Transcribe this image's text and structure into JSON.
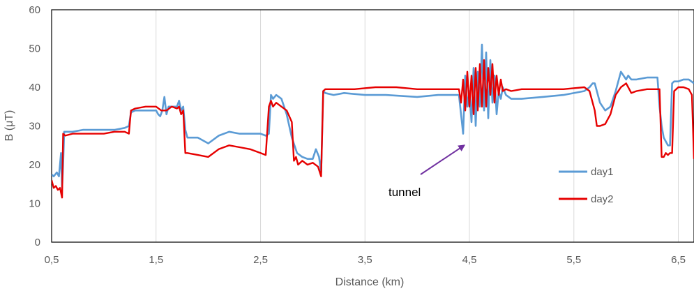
{
  "chart_data": {
    "type": "line",
    "title": "",
    "xlabel": "Distance (km)",
    "ylabel": "B (μT)",
    "xlim": [
      0.5,
      6.65
    ],
    "ylim": [
      0,
      60
    ],
    "x_ticks": [
      0.5,
      1.5,
      2.5,
      3.5,
      4.5,
      5.5,
      6.5
    ],
    "x_tick_labels": [
      "0,5",
      "1,5",
      "2,5",
      "3,5",
      "4,5",
      "5,5",
      "6,5"
    ],
    "y_ticks": [
      0,
      10,
      20,
      30,
      40,
      50,
      60
    ],
    "y_tick_labels": [
      "0",
      "10",
      "20",
      "30",
      "40",
      "50",
      "60"
    ],
    "grid": "vertical",
    "legend_position": "right",
    "annotations": [
      {
        "text": "tunnel",
        "arrow_to": [
          4.45,
          25
        ]
      }
    ],
    "series": [
      {
        "name": "day1",
        "color": "#5b9bd5",
        "x": [
          0.5,
          0.52,
          0.55,
          0.57,
          0.59,
          0.6,
          0.61,
          0.62,
          0.65,
          0.7,
          0.8,
          1.0,
          1.1,
          1.2,
          1.24,
          1.26,
          1.3,
          1.4,
          1.5,
          1.52,
          1.54,
          1.56,
          1.58,
          1.6,
          1.62,
          1.65,
          1.7,
          1.72,
          1.74,
          1.76,
          1.78,
          1.8,
          1.9,
          2.0,
          2.1,
          2.2,
          2.3,
          2.4,
          2.5,
          2.55,
          2.58,
          2.6,
          2.62,
          2.65,
          2.7,
          2.75,
          2.8,
          2.85,
          2.9,
          2.95,
          3.0,
          3.03,
          3.06,
          3.08,
          3.1,
          3.12,
          3.2,
          3.3,
          3.5,
          3.7,
          4.0,
          4.2,
          4.4,
          4.44,
          4.46,
          4.48,
          4.5,
          4.52,
          4.54,
          4.56,
          4.58,
          4.6,
          4.62,
          4.64,
          4.66,
          4.68,
          4.7,
          4.72,
          4.74,
          4.76,
          4.78,
          4.8,
          4.82,
          4.85,
          4.9,
          5.0,
          5.2,
          5.4,
          5.6,
          5.65,
          5.68,
          5.7,
          5.75,
          5.8,
          5.85,
          5.9,
          5.95,
          6.0,
          6.02,
          6.05,
          6.1,
          6.2,
          6.3,
          6.32,
          6.34,
          6.36,
          6.38,
          6.4,
          6.42,
          6.44,
          6.46,
          6.5,
          6.55,
          6.6,
          6.65
        ],
        "y": [
          17.5,
          17,
          18,
          17,
          23,
          14,
          20,
          28.5,
          28.5,
          28.5,
          29,
          29,
          29,
          29.5,
          30,
          33.5,
          34,
          34,
          34,
          33,
          32.5,
          34,
          37.5,
          33,
          35,
          35,
          35,
          36.5,
          34,
          35,
          29,
          27,
          27,
          25.5,
          27.5,
          28.5,
          28,
          28,
          28,
          27.5,
          28,
          38,
          37,
          38,
          37,
          33,
          27,
          23,
          22,
          21.5,
          21.5,
          24,
          22,
          18,
          39,
          38.5,
          38,
          38.5,
          38,
          38,
          37.5,
          38,
          38,
          28,
          43,
          35,
          39,
          31,
          45,
          30,
          44,
          35,
          51,
          34,
          49,
          32,
          47,
          36,
          43,
          33,
          39,
          37,
          40,
          38,
          37,
          37,
          37.5,
          38,
          39,
          40,
          41,
          41,
          36,
          34,
          35,
          39,
          44,
          42,
          43,
          42,
          42,
          42.5,
          42.5,
          35,
          30,
          27,
          26,
          25,
          25,
          41,
          41.5,
          41.5,
          42,
          42,
          41
        ]
      },
      {
        "name": "day2",
        "color": "#e60000",
        "x": [
          0.5,
          0.52,
          0.54,
          0.56,
          0.58,
          0.6,
          0.61,
          0.63,
          0.7,
          0.8,
          1.0,
          1.1,
          1.2,
          1.24,
          1.26,
          1.3,
          1.4,
          1.5,
          1.55,
          1.6,
          1.65,
          1.7,
          1.72,
          1.74,
          1.76,
          1.78,
          1.8,
          1.9,
          2.0,
          2.1,
          2.2,
          2.3,
          2.4,
          2.5,
          2.55,
          2.58,
          2.6,
          2.62,
          2.65,
          2.7,
          2.75,
          2.8,
          2.82,
          2.84,
          2.86,
          2.9,
          2.95,
          3.0,
          3.05,
          3.08,
          3.1,
          3.12,
          3.2,
          3.4,
          3.6,
          3.8,
          4.0,
          4.2,
          4.4,
          4.42,
          4.44,
          4.46,
          4.48,
          4.5,
          4.52,
          4.54,
          4.56,
          4.58,
          4.6,
          4.62,
          4.64,
          4.66,
          4.68,
          4.7,
          4.72,
          4.74,
          4.76,
          4.78,
          4.8,
          4.82,
          4.85,
          4.9,
          5.0,
          5.2,
          5.4,
          5.6,
          5.65,
          5.7,
          5.72,
          5.75,
          5.8,
          5.85,
          5.9,
          5.95,
          6.0,
          6.02,
          6.05,
          6.1,
          6.2,
          6.3,
          6.32,
          6.34,
          6.36,
          6.38,
          6.4,
          6.42,
          6.44,
          6.46,
          6.48,
          6.5,
          6.55,
          6.6,
          6.63,
          6.65
        ],
        "y": [
          16,
          14,
          14.5,
          13.5,
          14,
          11.5,
          28,
          27.5,
          28,
          28,
          28,
          28.5,
          28.5,
          28,
          34,
          34.5,
          35,
          35,
          34,
          34,
          35,
          34.5,
          35,
          33,
          34,
          23,
          23,
          22.5,
          22,
          24,
          25,
          24.5,
          24,
          23,
          22.5,
          35,
          36.5,
          35,
          36,
          35,
          34,
          31,
          21,
          22,
          20,
          21,
          20,
          20.5,
          19.5,
          17,
          39,
          39.5,
          39.5,
          39.5,
          40,
          40,
          39.5,
          39.5,
          39.5,
          36,
          42,
          34,
          44,
          35,
          43,
          33,
          45,
          34,
          46,
          35,
          47,
          35,
          45,
          38,
          46,
          36,
          43,
          38,
          42,
          39,
          39.5,
          39,
          39.5,
          39.5,
          39.5,
          40,
          39,
          34,
          30,
          30,
          30.5,
          33,
          38,
          40,
          41,
          40,
          38.5,
          39,
          39.5,
          39.5,
          39.5,
          22,
          22,
          23,
          22.5,
          23,
          23,
          39,
          39.5,
          40,
          40,
          39.5,
          38,
          21.5
        ]
      }
    ]
  }
}
